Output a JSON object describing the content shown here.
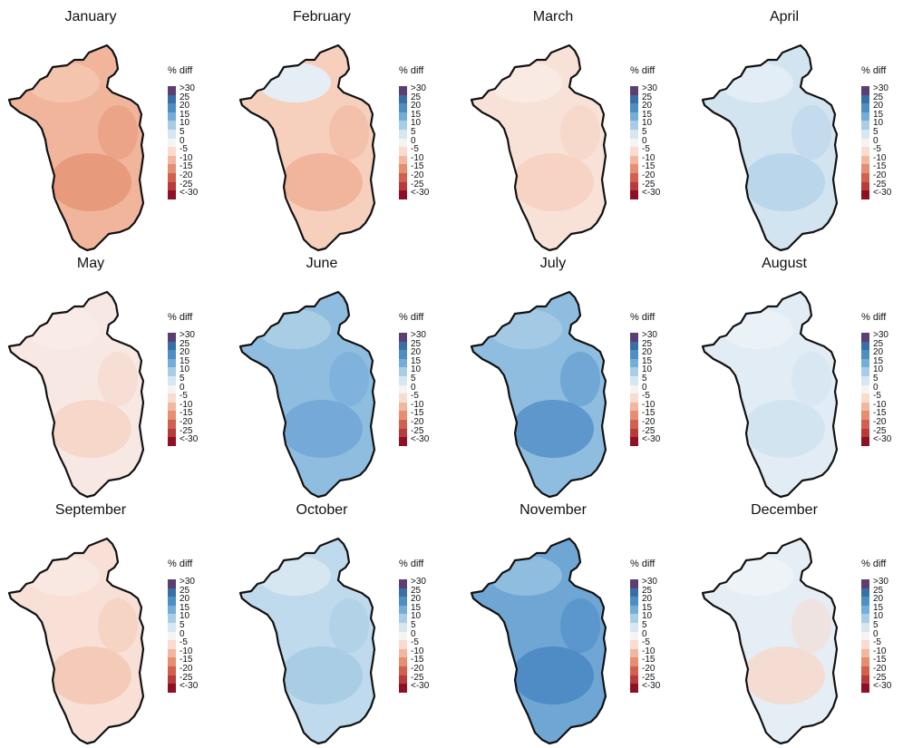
{
  "legend": {
    "title": "% diff",
    "labels": [
      ">30",
      "25",
      "20",
      "15",
      "10",
      "5",
      "0",
      "-5",
      "-10",
      "-15",
      "-20",
      "-25",
      "<-30"
    ],
    "colors": [
      "#5b3f73",
      "#3a6fa6",
      "#4e8fc3",
      "#73aed6",
      "#a9cde5",
      "#d6e7f1",
      "#f6f3f3",
      "#f8dcd0",
      "#f2b79e",
      "#e58e72",
      "#d2604f",
      "#b83a3b",
      "#8f1024"
    ]
  },
  "panels": [
    {
      "month": "January",
      "base": "#f1b59c",
      "blob1": "#e89a7c",
      "blob2": "#f4c4ad"
    },
    {
      "month": "February",
      "base": "#f6cfbd",
      "blob1": "#f1b59c",
      "blob2": "#e6eef5"
    },
    {
      "month": "March",
      "base": "#f8e2d8",
      "blob1": "#f6d3c3",
      "blob2": "#f9eae3"
    },
    {
      "month": "April",
      "base": "#d2e4f0",
      "blob1": "#b9d6ea",
      "blob2": "#e3edf5"
    },
    {
      "month": "May",
      "base": "#f8e8e3",
      "blob1": "#f6d7c9",
      "blob2": "#f9ece8"
    },
    {
      "month": "June",
      "base": "#8fbde0",
      "blob1": "#75aad8",
      "blob2": "#a9cde5"
    },
    {
      "month": "July",
      "base": "#8fbde0",
      "blob1": "#5d97cb",
      "blob2": "#a3c9e5"
    },
    {
      "month": "August",
      "base": "#e2ecf5",
      "blob1": "#d3e4f1",
      "blob2": "#eaf1f7"
    },
    {
      "month": "September",
      "base": "#f8e0d6",
      "blob1": "#f4cbb8",
      "blob2": "#f9e8e1"
    },
    {
      "month": "October",
      "base": "#bfdaec",
      "blob1": "#a9cde5",
      "blob2": "#d6e7f1"
    },
    {
      "month": "November",
      "base": "#6fa6d4",
      "blob1": "#4f8cc6",
      "blob2": "#8fbde0"
    },
    {
      "month": "December",
      "base": "#e6eef5",
      "blob1": "#f4dcd2",
      "blob2": "#eef3f8"
    }
  ]
}
